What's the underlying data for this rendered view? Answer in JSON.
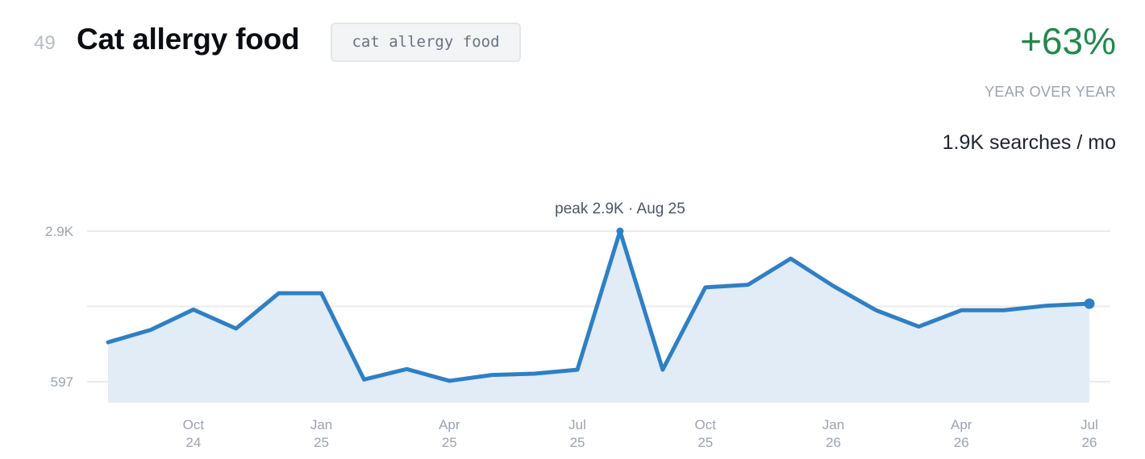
{
  "header": {
    "rank": "49",
    "title": "Cat allergy food",
    "keyword_tag": "cat allergy food",
    "change": "+63%",
    "change_label": "YEAR OVER YEAR",
    "volume": "1.9K searches / mo",
    "change_color": "#23884f"
  },
  "chart_data": {
    "type": "area",
    "x": [
      "Aug 24",
      "Sep 24",
      "Oct 24",
      "Nov 24",
      "Dec 24",
      "Jan 25",
      "Feb 25",
      "Mar 25",
      "Apr 25",
      "May 25",
      "Jun 25",
      "Jul 25",
      "Aug 25",
      "Sep 25",
      "Oct 25",
      "Nov 25",
      "Dec 25",
      "Jan 26",
      "Feb 26",
      "Mar 26",
      "Apr 26",
      "May 26",
      "Jun 26",
      "Jul 26"
    ],
    "series": [
      {
        "values": [
          1200,
          1390,
          1700,
          1410,
          1950,
          1950,
          630,
          790,
          610,
          700,
          720,
          780,
          2900,
          780,
          2040,
          2080,
          2480,
          2060,
          1690,
          1440,
          1690,
          1690,
          1760,
          1790
        ],
        "color": "#2f7fc4",
        "fill": "#e1ecf7"
      }
    ],
    "y_ticks": [
      {
        "value": 2900,
        "label": "2.9K"
      },
      {
        "value": 597,
        "label": "597"
      }
    ],
    "x_ticks": [
      {
        "index": 2,
        "month": "Oct",
        "year": "24"
      },
      {
        "index": 5,
        "month": "Jan",
        "year": "25"
      },
      {
        "index": 8,
        "month": "Apr",
        "year": "25"
      },
      {
        "index": 11,
        "month": "Jul",
        "year": "25"
      },
      {
        "index": 14,
        "month": "Oct",
        "year": "25"
      },
      {
        "index": 17,
        "month": "Jan",
        "year": "26"
      },
      {
        "index": 20,
        "month": "Apr",
        "year": "26"
      },
      {
        "index": 23,
        "month": "Jul",
        "year": "26"
      }
    ],
    "peak": {
      "index": 12,
      "label": "peak 2.9K · Aug 25"
    },
    "ylim": [
      270,
      2900
    ],
    "grid": true
  }
}
